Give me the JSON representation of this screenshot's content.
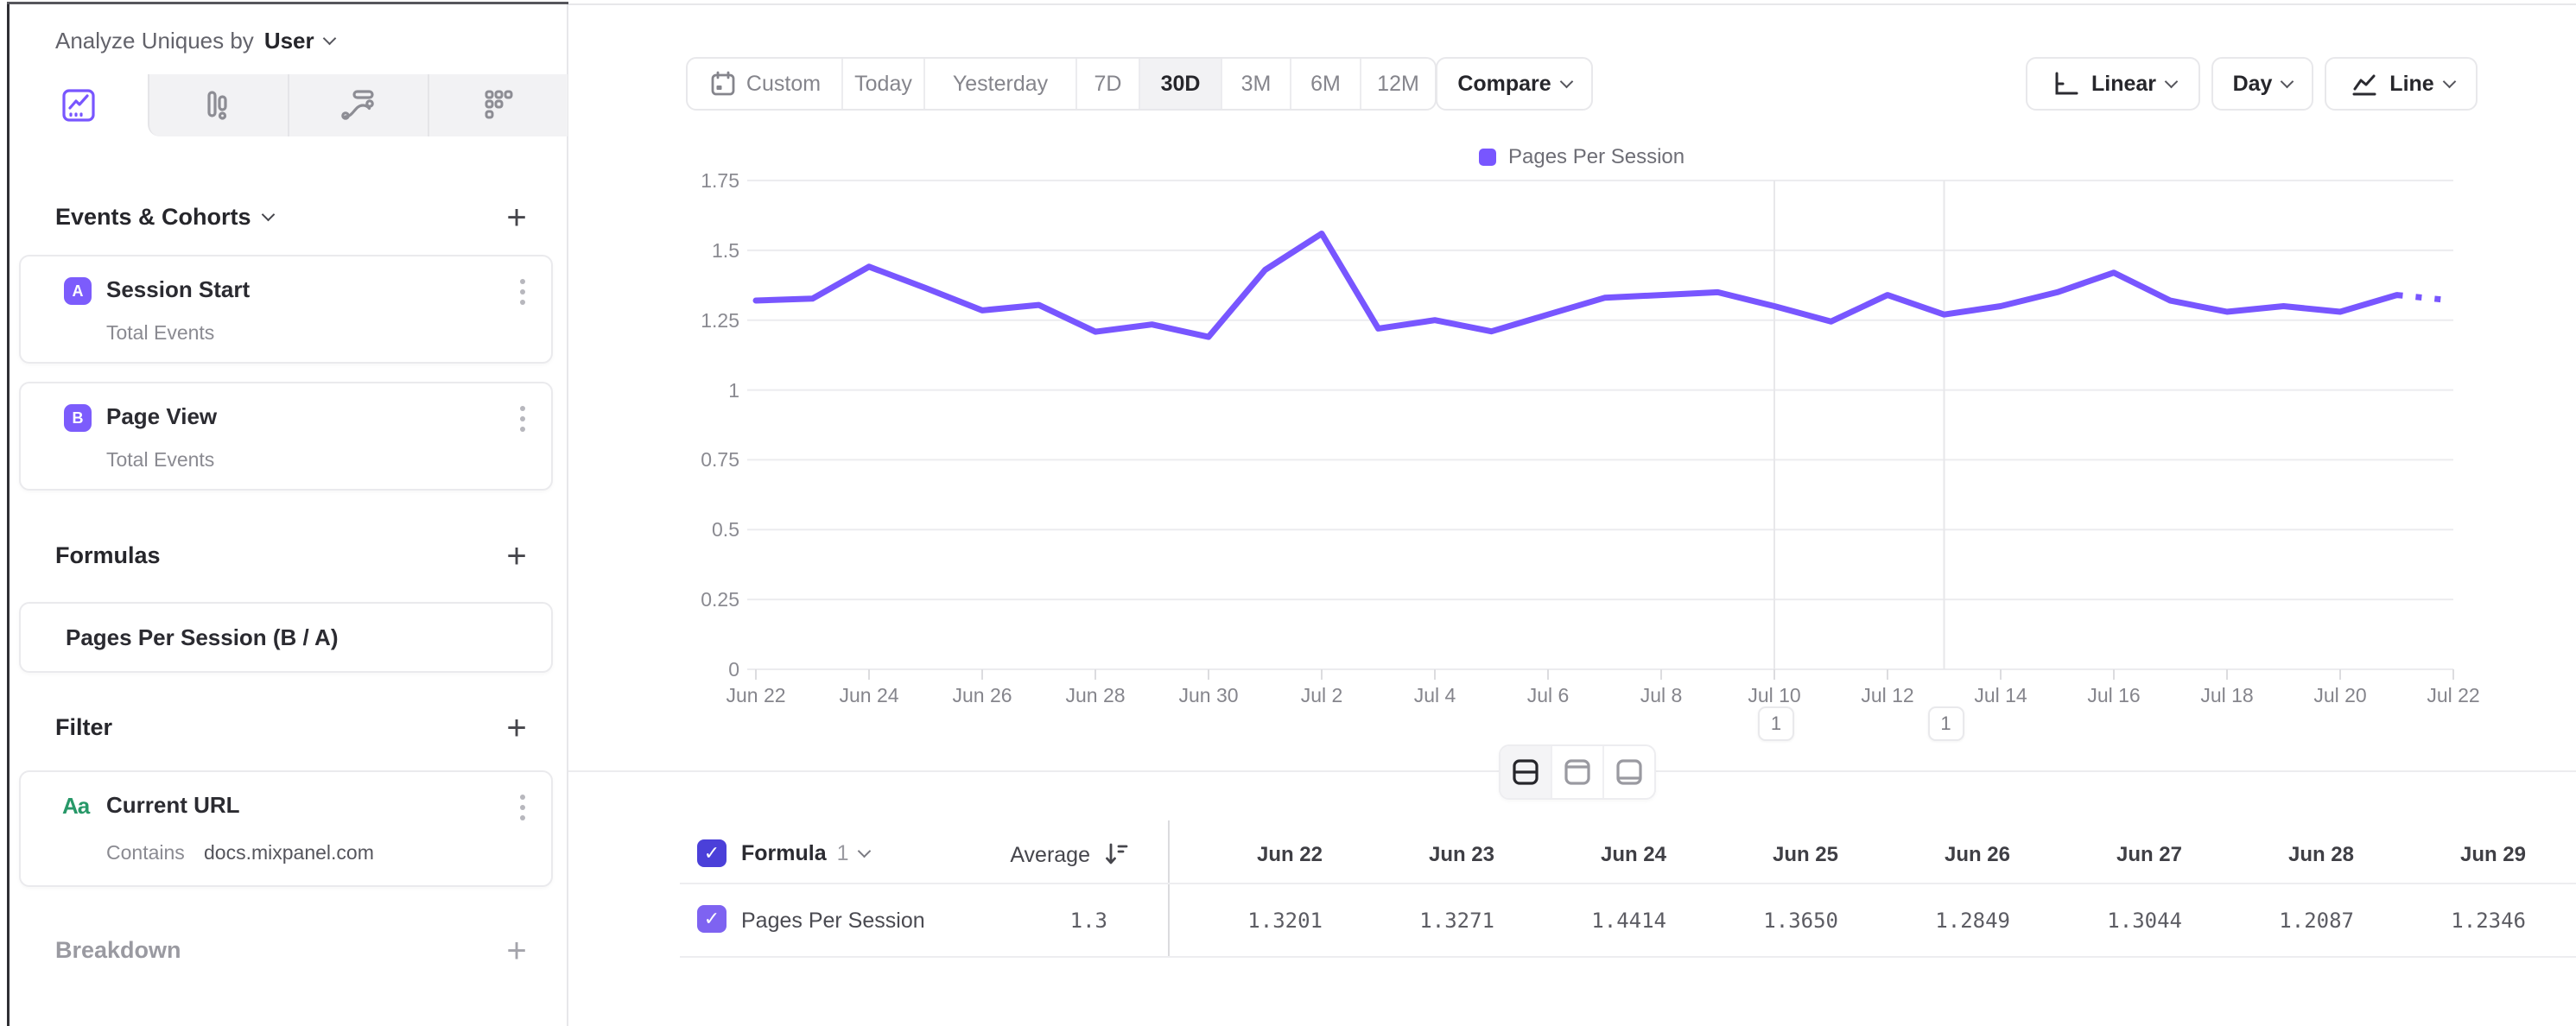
{
  "colors": {
    "accent": "#7856ff",
    "accent_dark": "#4b40d9",
    "badge_purple": "#7c5cfc",
    "green": "#279868"
  },
  "sidebar": {
    "header": {
      "prefix": "Analyze Uniques by",
      "entity": "User"
    },
    "tabs": [
      {
        "name": "insights-line",
        "active": true
      },
      {
        "name": "bars",
        "active": false
      },
      {
        "name": "flows",
        "active": false
      },
      {
        "name": "retention-grid",
        "active": false
      }
    ],
    "events_section_title": "Events & Cohorts",
    "events": [
      {
        "letter": "A",
        "name": "Session Start",
        "metric": "Total Events"
      },
      {
        "letter": "B",
        "name": "Page View",
        "metric": "Total Events"
      }
    ],
    "formulas_section_title": "Formulas",
    "formulas": [
      {
        "name": "Pages Per Session (B / A)"
      }
    ],
    "filter_section_title": "Filter",
    "filters": [
      {
        "type": "Aa",
        "name": "Current URL",
        "operator": "Contains",
        "value": "docs.mixpanel.com"
      }
    ],
    "breakdown_section_title": "Breakdown"
  },
  "toolbar": {
    "ranges": [
      "Custom",
      "Today",
      "Yesterday",
      "7D",
      "30D",
      "3M",
      "6M",
      "12M"
    ],
    "active_range": "30D",
    "compare_label": "Compare",
    "scale_label": "Linear",
    "granularity_label": "Day",
    "chart_type_label": "Line"
  },
  "chart_data": {
    "type": "line",
    "title": "",
    "x": [
      "Jun 22",
      "Jun 23",
      "Jun 24",
      "Jun 25",
      "Jun 26",
      "Jun 27",
      "Jun 28",
      "Jun 29",
      "Jun 30",
      "Jul 1",
      "Jul 2",
      "Jul 3",
      "Jul 4",
      "Jul 5",
      "Jul 6",
      "Jul 7",
      "Jul 8",
      "Jul 9",
      "Jul 10",
      "Jul 11",
      "Jul 12",
      "Jul 13",
      "Jul 14",
      "Jul 15",
      "Jul 16",
      "Jul 17",
      "Jul 18",
      "Jul 19",
      "Jul 20",
      "Jul 21",
      "Jul 22"
    ],
    "series": [
      {
        "name": "Pages Per Session",
        "color": "#7856ff",
        "values": [
          1.3201,
          1.3271,
          1.4414,
          1.365,
          1.2849,
          1.3044,
          1.2087,
          1.2346,
          1.19,
          1.43,
          1.56,
          1.22,
          1.25,
          1.21,
          1.27,
          1.33,
          1.34,
          1.35,
          1.3,
          1.245,
          1.34,
          1.27,
          1.3,
          1.35,
          1.42,
          1.32,
          1.28,
          1.3,
          1.28,
          1.34,
          1.32
        ],
        "last_segment_dashed": true
      }
    ],
    "ylim": [
      0,
      1.75
    ],
    "y_ticks": [
      0,
      0.25,
      0.5,
      0.75,
      1,
      1.25,
      1.5,
      1.75
    ],
    "x_tick_every": 2,
    "grid": "horizontal",
    "legend_position": "top-center",
    "annotations": [
      {
        "x": "Jul 10",
        "label": "1"
      },
      {
        "x": "Jul 13",
        "label": "1"
      }
    ]
  },
  "table": {
    "group_label": "Formula",
    "group_number": "1",
    "average_label": "Average",
    "columns": [
      "Jun 22",
      "Jun 23",
      "Jun 24",
      "Jun 25",
      "Jun 26",
      "Jun 27",
      "Jun 28",
      "Jun 29"
    ],
    "rows": [
      {
        "name": "Pages Per Session",
        "average": "1.3",
        "values": [
          "1.3201",
          "1.3271",
          "1.4414",
          "1.3650",
          "1.2849",
          "1.3044",
          "1.2087",
          "1.2346"
        ]
      }
    ]
  }
}
